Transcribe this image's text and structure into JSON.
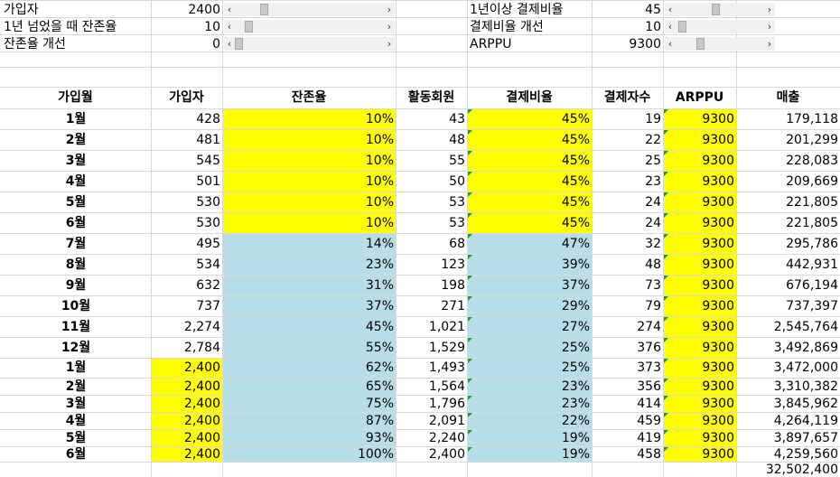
{
  "controls": [
    {
      "label": "가입자",
      "value": "2400",
      "thumb": 0.18
    },
    {
      "label": "1년 넘었을 때 잔존율",
      "value": "10",
      "thumb": 0.07
    },
    {
      "label": "잔존율 개선",
      "value": "0",
      "thumb": 0.0
    },
    {
      "label": "1년이상 결제비율",
      "value": "45",
      "thumb": 0.45
    },
    {
      "label": "결제비율 개선",
      "value": "10",
      "thumb": 0.03
    },
    {
      "label": "ARPPU",
      "value": "9300",
      "thumb": 0.26
    }
  ],
  "headers": {
    "month": "가입월",
    "signups": "가입자",
    "retention": "잔존율",
    "active": "활동회원",
    "payrate": "결제비율",
    "payers": "결제자수",
    "arppu": "ARPPU",
    "revenue": "매출"
  },
  "rows": [
    {
      "month": "1월",
      "signups": "428",
      "retention": "10%",
      "active": "43",
      "payrate": "45%",
      "payers": "19",
      "arppu": "9300",
      "revenue": "179,118"
    },
    {
      "month": "2월",
      "signups": "481",
      "retention": "10%",
      "active": "48",
      "payrate": "45%",
      "payers": "22",
      "arppu": "9300",
      "revenue": "201,299"
    },
    {
      "month": "3월",
      "signups": "545",
      "retention": "10%",
      "active": "55",
      "payrate": "45%",
      "payers": "25",
      "arppu": "9300",
      "revenue": "228,083"
    },
    {
      "month": "4월",
      "signups": "501",
      "retention": "10%",
      "active": "50",
      "payrate": "45%",
      "payers": "23",
      "arppu": "9300",
      "revenue": "209,669"
    },
    {
      "month": "5월",
      "signups": "530",
      "retention": "10%",
      "active": "53",
      "payrate": "45%",
      "payers": "24",
      "arppu": "9300",
      "revenue": "221,805"
    },
    {
      "month": "6월",
      "signups": "530",
      "retention": "10%",
      "active": "53",
      "payrate": "45%",
      "payers": "24",
      "arppu": "9300",
      "revenue": "221,805"
    },
    {
      "month": "7월",
      "signups": "495",
      "retention": "14%",
      "active": "68",
      "payrate": "47%",
      "payers": "32",
      "arppu": "9300",
      "revenue": "295,786"
    },
    {
      "month": "8월",
      "signups": "534",
      "retention": "23%",
      "active": "123",
      "payrate": "39%",
      "payers": "48",
      "arppu": "9300",
      "revenue": "442,931"
    },
    {
      "month": "9월",
      "signups": "632",
      "retention": "31%",
      "active": "198",
      "payrate": "37%",
      "payers": "73",
      "arppu": "9300",
      "revenue": "676,194"
    },
    {
      "month": "10월",
      "signups": "737",
      "retention": "37%",
      "active": "271",
      "payrate": "29%",
      "payers": "79",
      "arppu": "9300",
      "revenue": "737,397"
    },
    {
      "month": "11월",
      "signups": "2,274",
      "retention": "45%",
      "active": "1,021",
      "payrate": "27%",
      "payers": "274",
      "arppu": "9300",
      "revenue": "2,545,764"
    },
    {
      "month": "12월",
      "signups": "2,784",
      "retention": "55%",
      "active": "1,529",
      "payrate": "25%",
      "payers": "376",
      "arppu": "9300",
      "revenue": "3,492,869"
    },
    {
      "month": "1월",
      "signups": "2,400",
      "retention": "62%",
      "active": "1,493",
      "payrate": "25%",
      "payers": "373",
      "arppu": "9300",
      "revenue": "3,472,000"
    },
    {
      "month": "2월",
      "signups": "2,400",
      "retention": "65%",
      "active": "1,564",
      "payrate": "23%",
      "payers": "356",
      "arppu": "9300",
      "revenue": "3,310,382"
    },
    {
      "month": "3월",
      "signups": "2,400",
      "retention": "75%",
      "active": "1,796",
      "payrate": "23%",
      "payers": "414",
      "arppu": "9300",
      "revenue": "3,845,962"
    },
    {
      "month": "4월",
      "signups": "2,400",
      "retention": "87%",
      "active": "2,091",
      "payrate": "22%",
      "payers": "459",
      "arppu": "9300",
      "revenue": "4,264,119"
    },
    {
      "month": "5월",
      "signups": "2,400",
      "retention": "93%",
      "active": "2,240",
      "payrate": "19%",
      "payers": "419",
      "arppu": "9300",
      "revenue": "3,897,657"
    },
    {
      "month": "6월",
      "signups": "2,400",
      "retention": "100%",
      "active": "2,400",
      "payrate": "19%",
      "payers": "458",
      "arppu": "9300",
      "revenue": "4,259,560"
    }
  ],
  "total_revenue": "32,502,400",
  "colors": {
    "highlight": "#ffff00",
    "input_blue": "#b7dde8",
    "grid": "#d9d9d9",
    "error_triangle": "#1a9c3a"
  }
}
